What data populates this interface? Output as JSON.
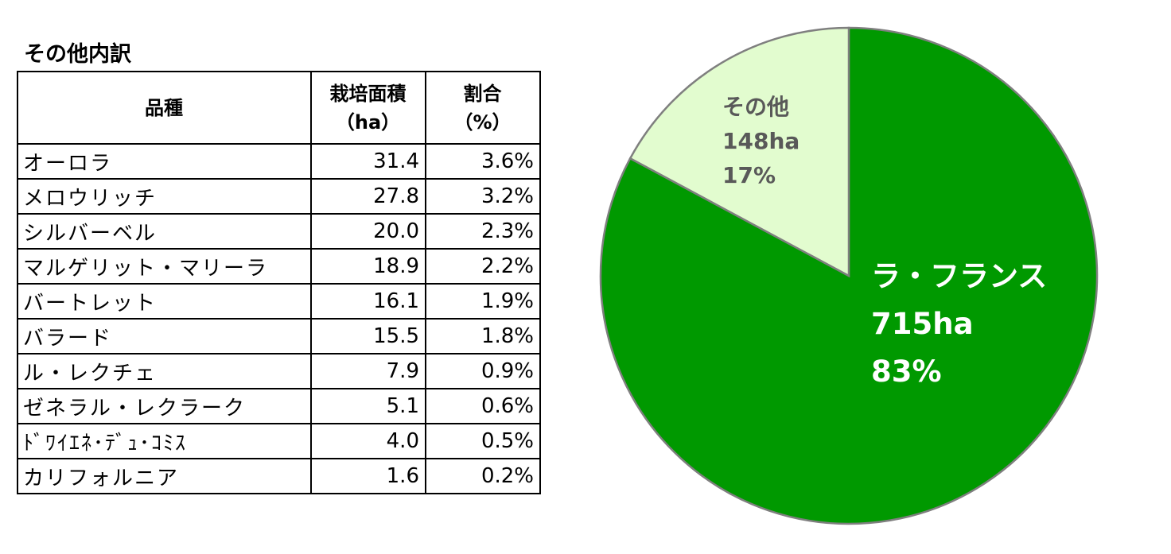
{
  "table": {
    "title": "その他内訳",
    "headers": {
      "variety": "品種",
      "area_line1": "栽培面積",
      "area_line2": "（ha）",
      "share_line1": "割合",
      "share_line2": "（%）"
    },
    "rows": [
      {
        "variety": "オーロラ",
        "area": "31.4",
        "share": "3.6%"
      },
      {
        "variety": "メロウリッチ",
        "area": "27.8",
        "share": "3.2%"
      },
      {
        "variety": "シルバーベル",
        "area": "20.0",
        "share": "2.3%"
      },
      {
        "variety": "マルゲリット・マリーラ",
        "area": "18.9",
        "share": "2.2%"
      },
      {
        "variety": "バートレット",
        "area": "16.1",
        "share": "1.9%"
      },
      {
        "variety": "バラード",
        "area": "15.5",
        "share": "1.8%"
      },
      {
        "variety": "ル・レクチェ",
        "area": "7.9",
        "share": "0.9%"
      },
      {
        "variety": "ゼネラル・レクラーク",
        "area": "5.1",
        "share": "0.6%"
      },
      {
        "variety": "ﾄﾞﾜｲｴﾈ･ﾃﾞｭ･ｺﾐｽ",
        "area": "4.0",
        "share": "0.5%"
      },
      {
        "variety": "カリフォルニア",
        "area": "1.6",
        "share": "0.2%"
      }
    ]
  },
  "chart_data": {
    "type": "pie",
    "slices": [
      {
        "label": "ラ・フランス",
        "value": 715,
        "value_label": "715ha",
        "percent_label": "83%",
        "color": "#009900",
        "text_color": "#ffffff"
      },
      {
        "label": "その他",
        "value": 148,
        "value_label": "148ha",
        "percent_label": "17%",
        "color": "#e2fccf",
        "text_color": "#595959"
      }
    ],
    "start_angle_deg": 0,
    "direction": "clockwise",
    "edge_color": "#7f7f7f"
  }
}
